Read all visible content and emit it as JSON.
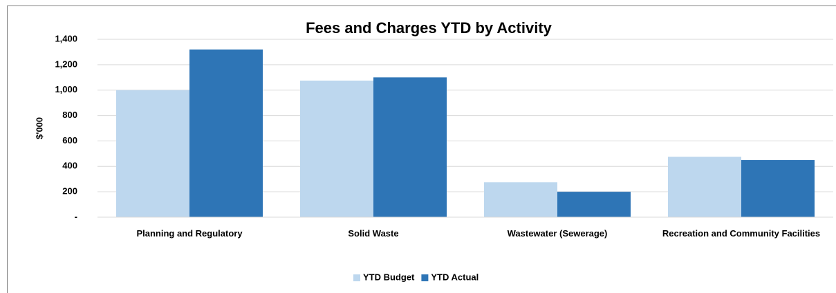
{
  "chart_data": {
    "type": "bar",
    "title": "Fees and Charges YTD by Activity",
    "y_label": "$'000",
    "categories": [
      "Planning and Regulatory",
      "Solid Waste",
      "Wastewater (Sewerage)",
      "Recreation and Community Facilities"
    ],
    "series": [
      {
        "name": "YTD Budget",
        "color": "#bdd7ee",
        "values": [
          1000,
          1075,
          275,
          475
        ]
      },
      {
        "name": "YTD Actual",
        "color": "#2e75b6",
        "values": [
          1320,
          1100,
          200,
          450
        ]
      }
    ],
    "ylim": [
      0,
      1400
    ],
    "yticks": [
      {
        "value": 0,
        "label": "-"
      },
      200,
      400,
      600,
      800,
      {
        "value": 1000,
        "label": "1,000"
      },
      {
        "value": 1200,
        "label": "1,200"
      },
      {
        "value": 1400,
        "label": "1,400"
      }
    ],
    "grid": true,
    "legend": "bottom"
  }
}
